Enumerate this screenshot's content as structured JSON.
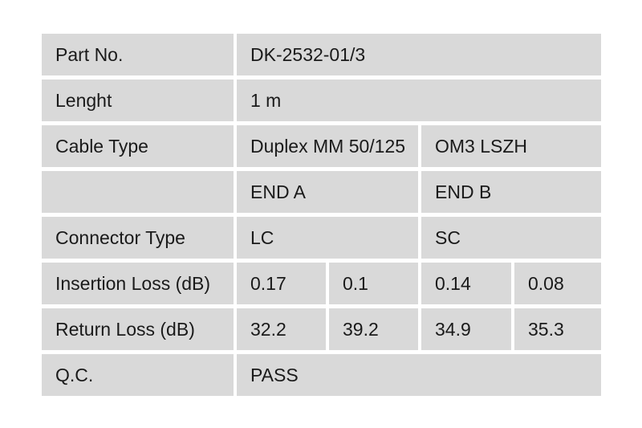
{
  "page": {
    "background": "#ffffff"
  },
  "table": {
    "cell_bg": "#d9d9d9",
    "gap_color": "#ffffff",
    "text_color": "#1a1a1a",
    "rows": [
      {
        "label": "Part No.",
        "cells": [
          {
            "text": "DK-2532-01/3",
            "span": 4
          }
        ]
      },
      {
        "label": "Lenght",
        "cells": [
          {
            "text": "1 m",
            "span": 4
          }
        ]
      },
      {
        "label": "Cable Type",
        "cells": [
          {
            "text": "Duplex MM 50/125",
            "span": 2
          },
          {
            "text": "OM3 LSZH",
            "span": 2
          }
        ]
      },
      {
        "label": "",
        "cells": [
          {
            "text": "END A",
            "span": 2
          },
          {
            "text": "END B",
            "span": 2
          }
        ]
      },
      {
        "label": "Connector Type",
        "cells": [
          {
            "text": "LC",
            "span": 2
          },
          {
            "text": "SC",
            "span": 2
          }
        ]
      },
      {
        "label": "Insertion Loss (dB)",
        "cells": [
          {
            "text": "0.17",
            "span": 1
          },
          {
            "text": "0.1",
            "span": 1
          },
          {
            "text": "0.14",
            "span": 1
          },
          {
            "text": "0.08",
            "span": 1
          }
        ]
      },
      {
        "label": "Return Loss (dB)",
        "cells": [
          {
            "text": "32.2",
            "span": 1
          },
          {
            "text": "39.2",
            "span": 1
          },
          {
            "text": "34.9",
            "span": 1
          },
          {
            "text": "35.3",
            "span": 1
          }
        ]
      },
      {
        "label": "Q.C.",
        "cells": [
          {
            "text": "PASS",
            "span": 4
          }
        ]
      }
    ]
  }
}
